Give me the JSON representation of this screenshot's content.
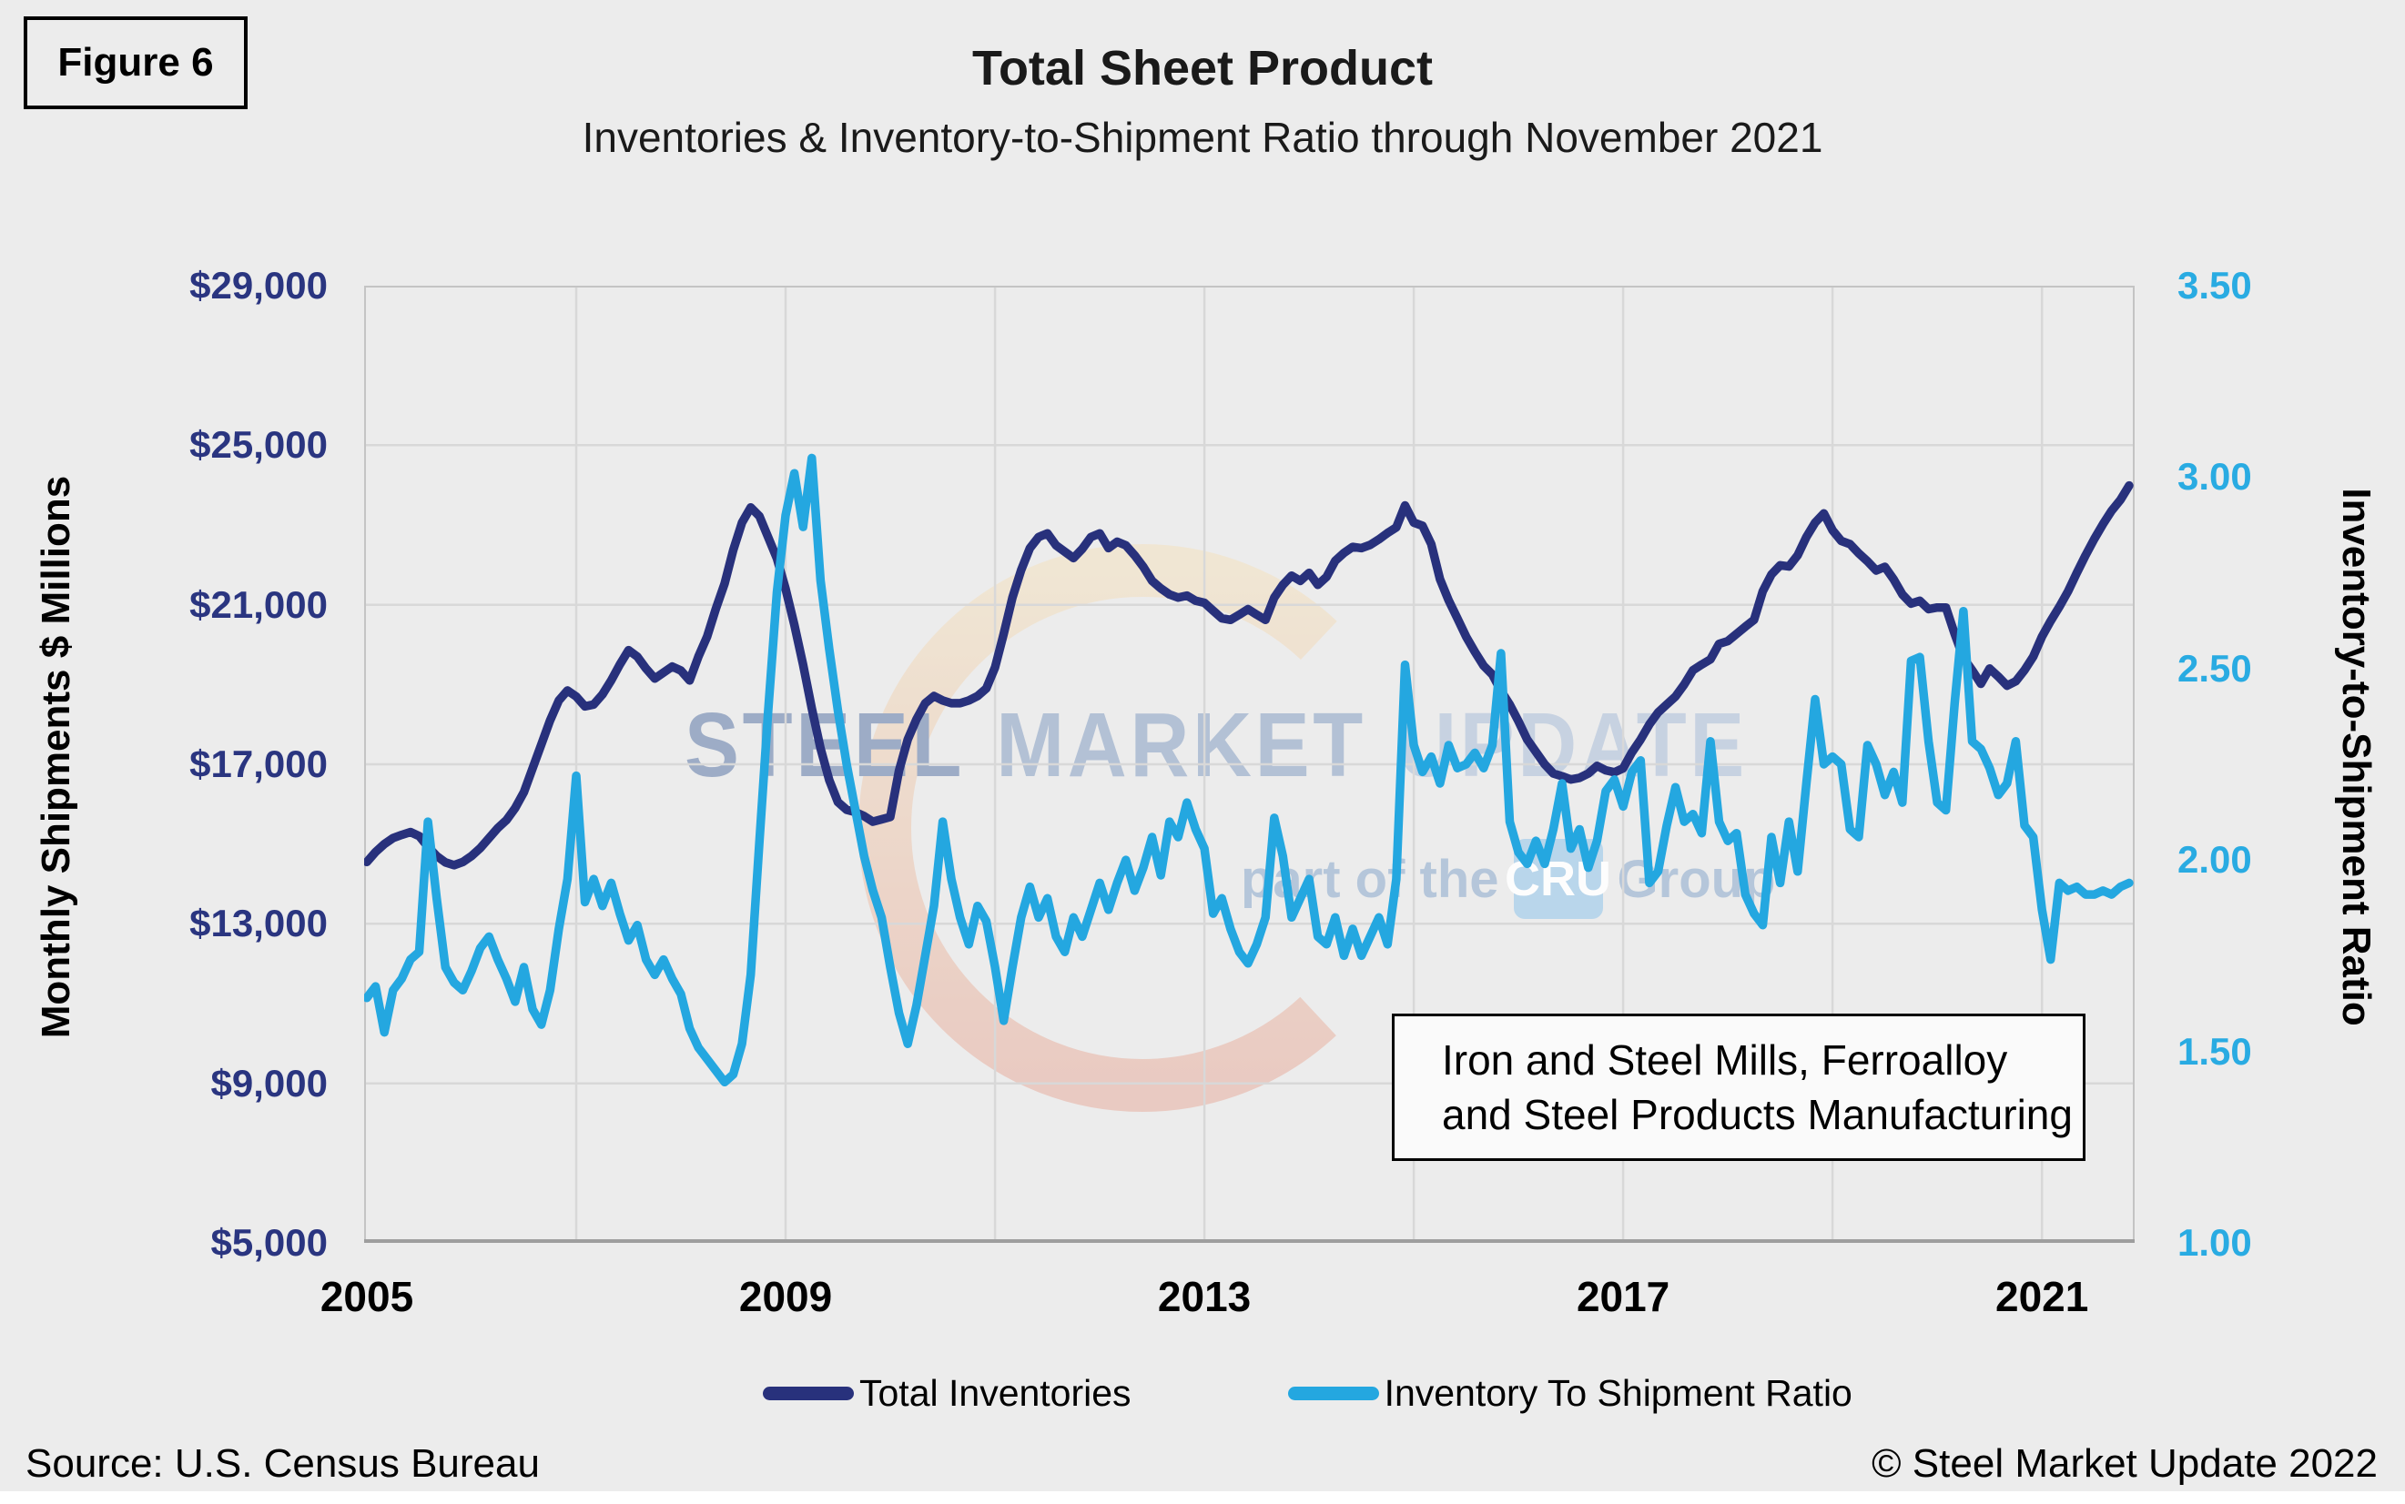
{
  "figure_label": "Figure 6",
  "title": "Total Sheet Product",
  "subtitle": "Inventories & Inventory-to-Shipment Ratio through November 2021",
  "annotation": {
    "line1": "Iron and Steel Mills, Ferroalloy",
    "line2": "and Steel Products Manufacturing"
  },
  "watermark": {
    "word1": "STEEL",
    "word2": "MARKET",
    "word3": "UPDATE",
    "tagline_prefix": "part of the",
    "cru": "CRU",
    "tagline_suffix": "Group"
  },
  "footer": {
    "source": "Source: U.S. Census Bureau",
    "copyright": "© Steel Market Update 2022"
  },
  "colors": {
    "inventories_line": "#28317C",
    "ratio_line": "#24A7E0",
    "left_tick_text": "#2A3580",
    "right_tick_text": "#29ABE2",
    "background": "#ECECEC",
    "gridline": "#D8D8D8",
    "plot_border": "#C4C4C4",
    "axis_line": "#9E9E9E"
  },
  "chart_data": {
    "type": "line",
    "title": "Total Sheet Product",
    "subtitle": "Inventories & Inventory-to-Shipment Ratio through November 2021",
    "grid": {
      "horizontal_values": [
        25000,
        21000,
        17000,
        13000,
        9000
      ],
      "vertical_years": [
        2007,
        2009,
        2011,
        2013,
        2015,
        2017,
        2019,
        2021
      ]
    },
    "left_axis": {
      "label": "Monthly Shipments $ Millions",
      "range": [
        5000,
        29000
      ],
      "ticks": [
        {
          "label": "$29,000",
          "value": 29000
        },
        {
          "label": "$25,000",
          "value": 25000
        },
        {
          "label": "$21,000",
          "value": 21000
        },
        {
          "label": "$17,000",
          "value": 17000
        },
        {
          "label": "$13,000",
          "value": 13000
        },
        {
          "label": "$9,000",
          "value": 9000
        },
        {
          "label": "$5,000",
          "value": 5000
        }
      ]
    },
    "right_axis": {
      "label": "Inventory-to-Shipment Ratio",
      "range": [
        1.0,
        3.5
      ],
      "ticks": [
        {
          "label": "3.50",
          "value": 3.5
        },
        {
          "label": "3.00",
          "value": 3.0
        },
        {
          "label": "2.50",
          "value": 2.5
        },
        {
          "label": "2.00",
          "value": 2.0
        },
        {
          "label": "1.50",
          "value": 1.5
        },
        {
          "label": "1.00",
          "value": 1.0
        }
      ]
    },
    "x_axis": {
      "frequency": "monthly",
      "start": "2005-01",
      "end": "2021-11",
      "ticks": [
        {
          "label": "2005",
          "year": 2005
        },
        {
          "label": "2009",
          "year": 2009
        },
        {
          "label": "2013",
          "year": 2013
        },
        {
          "label": "2017",
          "year": 2017
        },
        {
          "label": "2021",
          "year": 2021
        }
      ]
    },
    "legend": [
      {
        "label": "Total Inventories",
        "color": "#28317C"
      },
      {
        "label": "Inventory To Shipment Ratio",
        "color": "#24A7E0"
      }
    ],
    "months": [
      "2005-01",
      "2005-02",
      "2005-03",
      "2005-04",
      "2005-05",
      "2005-06",
      "2005-07",
      "2005-08",
      "2005-09",
      "2005-10",
      "2005-11",
      "2005-12",
      "2006-01",
      "2006-02",
      "2006-03",
      "2006-04",
      "2006-05",
      "2006-06",
      "2006-07",
      "2006-08",
      "2006-09",
      "2006-10",
      "2006-11",
      "2006-12",
      "2007-01",
      "2007-02",
      "2007-03",
      "2007-04",
      "2007-05",
      "2007-06",
      "2007-07",
      "2007-08",
      "2007-09",
      "2007-10",
      "2007-11",
      "2007-12",
      "2008-01",
      "2008-02",
      "2008-03",
      "2008-04",
      "2008-05",
      "2008-06",
      "2008-07",
      "2008-08",
      "2008-09",
      "2008-10",
      "2008-11",
      "2008-12",
      "2009-01",
      "2009-02",
      "2009-03",
      "2009-04",
      "2009-05",
      "2009-06",
      "2009-07",
      "2009-08",
      "2009-09",
      "2009-10",
      "2009-11",
      "2009-12",
      "2010-01",
      "2010-02",
      "2010-03",
      "2010-04",
      "2010-05",
      "2010-06",
      "2010-07",
      "2010-08",
      "2010-09",
      "2010-10",
      "2010-11",
      "2010-12",
      "2011-01",
      "2011-02",
      "2011-03",
      "2011-04",
      "2011-05",
      "2011-06",
      "2011-07",
      "2011-08",
      "2011-09",
      "2011-10",
      "2011-11",
      "2011-12",
      "2012-01",
      "2012-02",
      "2012-03",
      "2012-04",
      "2012-05",
      "2012-06",
      "2012-07",
      "2012-08",
      "2012-09",
      "2012-10",
      "2012-11",
      "2012-12",
      "2013-01",
      "2013-02",
      "2013-03",
      "2013-04",
      "2013-05",
      "2013-06",
      "2013-07",
      "2013-08",
      "2013-09",
      "2013-10",
      "2013-11",
      "2013-12",
      "2014-01",
      "2014-02",
      "2014-03",
      "2014-04",
      "2014-05",
      "2014-06",
      "2014-07",
      "2014-08",
      "2014-09",
      "2014-10",
      "2014-11",
      "2014-12",
      "2015-01",
      "2015-02",
      "2015-03",
      "2015-04",
      "2015-05",
      "2015-06",
      "2015-07",
      "2015-08",
      "2015-09",
      "2015-10",
      "2015-11",
      "2015-12",
      "2016-01",
      "2016-02",
      "2016-03",
      "2016-04",
      "2016-05",
      "2016-06",
      "2016-07",
      "2016-08",
      "2016-09",
      "2016-10",
      "2016-11",
      "2016-12",
      "2017-01",
      "2017-02",
      "2017-03",
      "2017-04",
      "2017-05",
      "2017-06",
      "2017-07",
      "2017-08",
      "2017-09",
      "2017-10",
      "2017-11",
      "2017-12",
      "2018-01",
      "2018-02",
      "2018-03",
      "2018-04",
      "2018-05",
      "2018-06",
      "2018-07",
      "2018-08",
      "2018-09",
      "2018-10",
      "2018-11",
      "2018-12",
      "2019-01",
      "2019-02",
      "2019-03",
      "2019-04",
      "2019-05",
      "2019-06",
      "2019-07",
      "2019-08",
      "2019-09",
      "2019-10",
      "2019-11",
      "2019-12",
      "2020-01",
      "2020-02",
      "2020-03",
      "2020-04",
      "2020-05",
      "2020-06",
      "2020-07",
      "2020-08",
      "2020-09",
      "2020-10",
      "2020-11",
      "2020-12",
      "2021-01",
      "2021-02",
      "2021-03",
      "2021-04",
      "2021-05",
      "2021-06",
      "2021-07",
      "2021-08",
      "2021-09",
      "2021-10",
      "2021-11"
    ],
    "series": [
      {
        "name": "Total Inventories",
        "axis": "left",
        "color": "#28317C",
        "values": [
          14550,
          14800,
          15000,
          15150,
          15230,
          15300,
          15200,
          14930,
          14700,
          14540,
          14470,
          14550,
          14700,
          14900,
          15150,
          15400,
          15600,
          15900,
          16300,
          16900,
          17500,
          18100,
          18600,
          18850,
          18700,
          18450,
          18500,
          18750,
          19100,
          19500,
          19860,
          19700,
          19400,
          19150,
          19300,
          19450,
          19350,
          19100,
          19700,
          20200,
          20900,
          21530,
          22370,
          23060,
          23440,
          23220,
          22690,
          22160,
          21400,
          20500,
          19500,
          18400,
          17400,
          16600,
          16050,
          15860,
          15800,
          15700,
          15560,
          15620,
          15680,
          16840,
          17620,
          18130,
          18530,
          18710,
          18600,
          18530,
          18530,
          18600,
          18710,
          18900,
          19430,
          20270,
          21180,
          21870,
          22420,
          22700,
          22790,
          22490,
          22330,
          22170,
          22400,
          22700,
          22790,
          22420,
          22580,
          22490,
          22240,
          21950,
          21600,
          21410,
          21260,
          21180,
          21230,
          21100,
          21050,
          20850,
          20660,
          20620,
          20750,
          20890,
          20750,
          20620,
          21180,
          21500,
          21730,
          21600,
          21800,
          21500,
          21700,
          22100,
          22300,
          22450,
          22420,
          22500,
          22640,
          22800,
          22940,
          23490,
          23060,
          22980,
          22520,
          21640,
          21110,
          20660,
          20200,
          19820,
          19470,
          19250,
          18840,
          18500,
          18080,
          17620,
          17310,
          17000,
          16770,
          16700,
          16620,
          16660,
          16770,
          16960,
          16850,
          16800,
          16900,
          17300,
          17620,
          18000,
          18300,
          18500,
          18700,
          19000,
          19360,
          19500,
          19630,
          20020,
          20090,
          20270,
          20450,
          20620,
          21340,
          21760,
          21990,
          21960,
          22240,
          22700,
          23060,
          23290,
          22870,
          22600,
          22520,
          22290,
          22090,
          21860,
          21950,
          21640,
          21260,
          21030,
          21100,
          20890,
          20930,
          20930,
          20270,
          19670,
          19360,
          19020,
          19400,
          19200,
          18970,
          19080,
          19360,
          19700,
          20200,
          20590,
          20950,
          21340,
          21800,
          22240,
          22650,
          23020,
          23360,
          23630,
          23990
        ]
      },
      {
        "name": "Inventory To Shipment Ratio",
        "axis": "right",
        "color": "#24A7E0",
        "values": [
          1.64,
          1.67,
          1.55,
          1.66,
          1.69,
          1.74,
          1.76,
          2.1,
          1.9,
          1.72,
          1.68,
          1.66,
          1.71,
          1.77,
          1.8,
          1.74,
          1.69,
          1.63,
          1.72,
          1.61,
          1.57,
          1.66,
          1.82,
          1.95,
          2.22,
          1.89,
          1.95,
          1.88,
          1.94,
          1.86,
          1.79,
          1.83,
          1.74,
          1.7,
          1.74,
          1.69,
          1.65,
          1.56,
          1.51,
          1.48,
          1.45,
          1.42,
          1.44,
          1.52,
          1.7,
          2.05,
          2.39,
          2.7,
          2.9,
          3.01,
          2.87,
          3.05,
          2.73,
          2.55,
          2.39,
          2.25,
          2.13,
          2.01,
          1.92,
          1.85,
          1.72,
          1.6,
          1.52,
          1.62,
          1.75,
          1.88,
          2.1,
          1.95,
          1.85,
          1.78,
          1.88,
          1.84,
          1.72,
          1.58,
          1.72,
          1.85,
          1.93,
          1.85,
          1.9,
          1.8,
          1.76,
          1.85,
          1.8,
          1.87,
          1.94,
          1.87,
          1.94,
          2.0,
          1.92,
          1.98,
          2.06,
          1.96,
          2.1,
          2.06,
          2.15,
          2.08,
          2.03,
          1.86,
          1.9,
          1.82,
          1.76,
          1.73,
          1.78,
          1.85,
          2.11,
          2.01,
          1.85,
          1.9,
          1.95,
          1.8,
          1.78,
          1.85,
          1.75,
          1.82,
          1.75,
          1.8,
          1.85,
          1.78,
          1.95,
          2.51,
          2.3,
          2.23,
          2.27,
          2.2,
          2.3,
          2.24,
          2.25,
          2.28,
          2.24,
          2.3,
          2.54,
          2.1,
          2.02,
          1.99,
          2.05,
          1.99,
          2.08,
          2.2,
          2.03,
          2.08,
          1.98,
          2.05,
          2.18,
          2.21,
          2.14,
          2.23,
          2.26,
          1.94,
          1.97,
          2.09,
          2.19,
          2.1,
          2.12,
          2.07,
          2.31,
          2.1,
          2.05,
          2.07,
          1.91,
          1.86,
          1.83,
          2.06,
          1.94,
          2.1,
          1.97,
          2.2,
          2.42,
          2.25,
          2.27,
          2.25,
          2.08,
          2.06,
          2.3,
          2.25,
          2.17,
          2.23,
          2.15,
          2.52,
          2.53,
          2.31,
          2.15,
          2.13,
          2.41,
          2.65,
          2.31,
          2.29,
          2.24,
          2.17,
          2.2,
          2.31,
          2.09,
          2.06,
          1.87,
          1.74,
          1.94,
          1.92,
          1.93,
          1.91,
          1.91,
          1.92,
          1.91,
          1.93,
          1.94
        ]
      }
    ]
  }
}
